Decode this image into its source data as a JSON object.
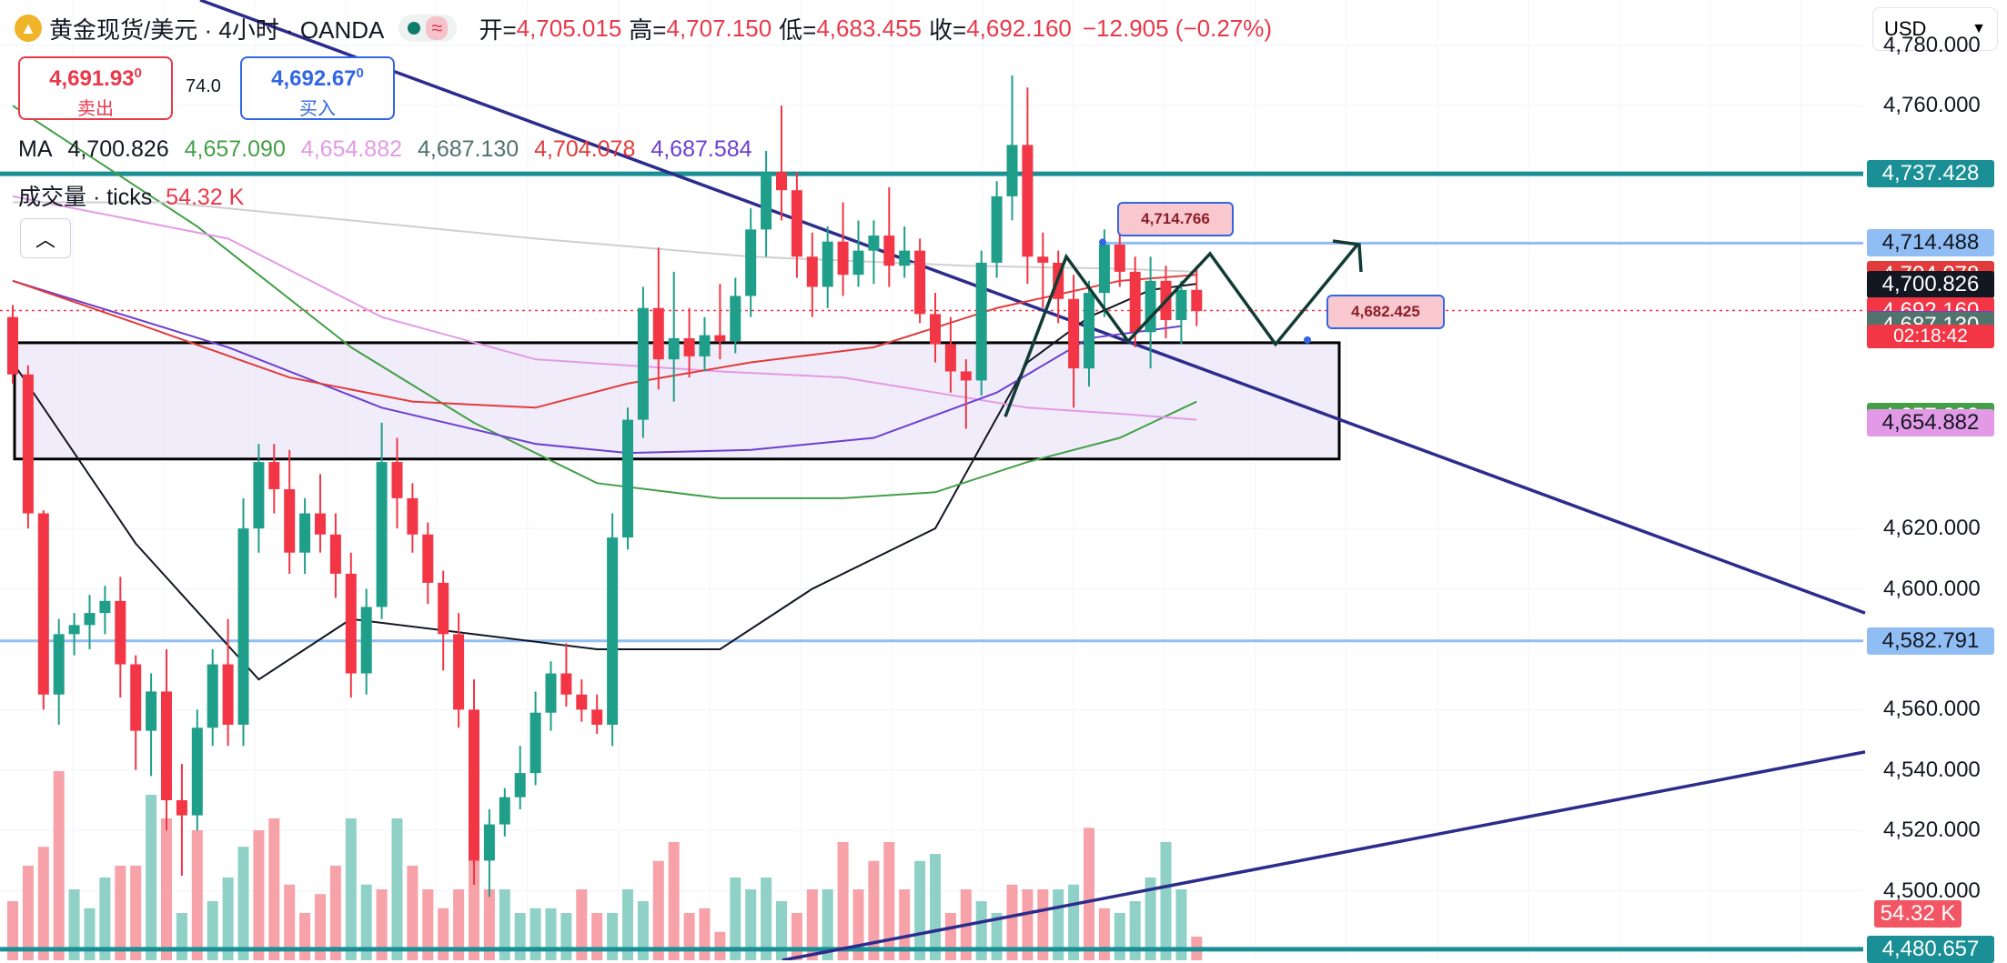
{
  "header": {
    "symbol": "黄金现货/美元 · 4小时 · OANDA",
    "wave_icon": "≈",
    "open_label": "开=",
    "open": "4,705.015",
    "high_label": "高=",
    "high": "4,707.150",
    "low_label": "低=",
    "low": "4,683.455",
    "close_label": "收=",
    "close": "4,692.160",
    "change": "−12.905 (−0.27%)"
  },
  "trade": {
    "sell_price": "4,691.93",
    "sell_sup": "0",
    "sell_label": "卖出",
    "spread": "74.0",
    "buy_price": "4,692.67",
    "buy_sup": "0",
    "buy_label": "买入"
  },
  "ma_legend": {
    "label": "MA",
    "values": [
      "4,700.826",
      "4,657.090",
      "4,654.882",
      "4,687.130",
      "4,704.078",
      "4,687.584"
    ],
    "colors": [
      "#131722",
      "#43a047",
      "#e39ae6",
      "#50736c",
      "#e23b3b",
      "#6c3fd1"
    ]
  },
  "volume_legend": {
    "label": "成交量 · ticks",
    "value": "54.32 K"
  },
  "currency": "USD",
  "axis": {
    "ticks": [
      "4,780.000",
      "4,760.000",
      "4,620.000",
      "4,600.000",
      "4,560.000",
      "4,540.000",
      "4,520.000",
      "4,500.000"
    ],
    "tick_values": [
      4780,
      4760,
      4620,
      4600,
      4560,
      4540,
      4520,
      4500
    ],
    "partial_bottom": "4,480.657",
    "price_min": 4477,
    "price_max": 4795
  },
  "price_tags": [
    {
      "text": "4,737.428",
      "value": 4737.428,
      "color": "#1a8f96"
    },
    {
      "text": "4,714.488",
      "value": 4714.488,
      "color": "#90bdf3"
    },
    {
      "text": "4,704.078",
      "value": 4704.078,
      "color": "#e23b3b"
    },
    {
      "text": "4,700.826",
      "value": 4700.826,
      "color": "#131722"
    },
    {
      "text": "4,692.160",
      "value": 4692.16,
      "color": "#f23645"
    },
    {
      "text": "4,687.584",
      "value": 4687.584,
      "color": "#6c3fd1"
    },
    {
      "text": "4,687.130",
      "value": 4687.13,
      "color": "#50736c"
    },
    {
      "text": "4,657.090",
      "value": 4657.09,
      "color": "#43a047"
    },
    {
      "text": "4,654.882",
      "value": 4654.882,
      "color": "#e39ae6"
    },
    {
      "text": "4,582.791",
      "value": 4582.791,
      "color": "#90bdf3"
    },
    {
      "text": "4,480.657",
      "value": 4480.657,
      "color": "#1a8f96"
    }
  ],
  "countdown": "02:18:42",
  "volume_tag": "54.32 K",
  "callouts": [
    {
      "text": "4,714.766",
      "value": 4714.766
    },
    {
      "text": "4,682.425",
      "value": 4682.425
    }
  ],
  "chart_data": {
    "type": "candlestick",
    "ohlc": [
      [
        4690,
        4694,
        4668,
        4671
      ],
      [
        4671,
        4674,
        4620,
        4625
      ],
      [
        4625,
        4626,
        4560,
        4565
      ],
      [
        4565,
        4590,
        4555,
        4585
      ],
      [
        4585,
        4592,
        4578,
        4588
      ],
      [
        4588,
        4598,
        4580,
        4592
      ],
      [
        4592,
        4601,
        4585,
        4596
      ],
      [
        4596,
        4604,
        4564,
        4575
      ],
      [
        4575,
        4578,
        4540,
        4553
      ],
      [
        4553,
        4572,
        4538,
        4566
      ],
      [
        4566,
        4580,
        4520,
        4530
      ],
      [
        4530,
        4542,
        4505,
        4525
      ],
      [
        4525,
        4560,
        4520,
        4554
      ],
      [
        4554,
        4580,
        4548,
        4575
      ],
      [
        4575,
        4590,
        4548,
        4555
      ],
      [
        4555,
        4630,
        4548,
        4620
      ],
      [
        4620,
        4648,
        4612,
        4642
      ],
      [
        4642,
        4648,
        4625,
        4633
      ],
      [
        4633,
        4646,
        4605,
        4612
      ],
      [
        4612,
        4630,
        4605,
        4625
      ],
      [
        4625,
        4638,
        4612,
        4618
      ],
      [
        4618,
        4625,
        4597,
        4605
      ],
      [
        4605,
        4612,
        4564,
        4572
      ],
      [
        4572,
        4600,
        4565,
        4594
      ],
      [
        4594,
        4655,
        4590,
        4642
      ],
      [
        4642,
        4650,
        4620,
        4630
      ],
      [
        4630,
        4635,
        4612,
        4618
      ],
      [
        4618,
        4622,
        4595,
        4602
      ],
      [
        4602,
        4606,
        4573,
        4585
      ],
      [
        4585,
        4592,
        4554,
        4560
      ],
      [
        4560,
        4570,
        4502,
        4510
      ],
      [
        4510,
        4527,
        4498,
        4522
      ],
      [
        4522,
        4534,
        4518,
        4531
      ],
      [
        4531,
        4548,
        4527,
        4539
      ],
      [
        4539,
        4566,
        4535,
        4559
      ],
      [
        4559,
        4576,
        4553,
        4572
      ],
      [
        4572,
        4582,
        4561,
        4565
      ],
      [
        4565,
        4570,
        4556,
        4560
      ],
      [
        4560,
        4565,
        4552,
        4555
      ],
      [
        4555,
        4625,
        4548,
        4617
      ],
      [
        4617,
        4660,
        4613,
        4656
      ],
      [
        4656,
        4700,
        4650,
        4693
      ],
      [
        4693,
        4713,
        4666,
        4676
      ],
      [
        4676,
        4705,
        4662,
        4683
      ],
      [
        4683,
        4693,
        4670,
        4677
      ],
      [
        4677,
        4690,
        4672,
        4684
      ],
      [
        4684,
        4701,
        4676,
        4682
      ],
      [
        4682,
        4703,
        4678,
        4697
      ],
      [
        4697,
        4726,
        4690,
        4719
      ],
      [
        4719,
        4745,
        4710,
        4738
      ],
      [
        4738,
        4760,
        4722,
        4732
      ],
      [
        4732,
        4738,
        4703,
        4710
      ],
      [
        4710,
        4718,
        4690,
        4700
      ],
      [
        4700,
        4720,
        4693,
        4715
      ],
      [
        4715,
        4728,
        4697,
        4704
      ],
      [
        4704,
        4722,
        4700,
        4712
      ],
      [
        4712,
        4722,
        4701,
        4717
      ],
      [
        4717,
        4733,
        4700,
        4707
      ],
      [
        4707,
        4720,
        4703,
        4712
      ],
      [
        4712,
        4716,
        4688,
        4691
      ],
      [
        4691,
        4698,
        4675,
        4681
      ],
      [
        4681,
        4690,
        4665,
        4672
      ],
      [
        4672,
        4676,
        4653,
        4669
      ],
      [
        4669,
        4712,
        4664,
        4708
      ],
      [
        4708,
        4735,
        4703,
        4730
      ],
      [
        4730,
        4770,
        4722,
        4747
      ],
      [
        4747,
        4766,
        4701,
        4710
      ],
      [
        4710,
        4718,
        4693,
        4708
      ],
      [
        4708,
        4712,
        4688,
        4696
      ],
      [
        4696,
        4704,
        4660,
        4673
      ],
      [
        4673,
        4702,
        4667,
        4698
      ],
      [
        4698,
        4719,
        4690,
        4714
      ],
      [
        4714,
        4722,
        4700,
        4705
      ],
      [
        4705,
        4710,
        4680,
        4685
      ],
      [
        4685,
        4710,
        4673,
        4702
      ],
      [
        4702,
        4707,
        4683,
        4689
      ],
      [
        4689,
        4702,
        4681,
        4699
      ],
      [
        4699,
        4707,
        4687,
        4692
      ]
    ],
    "volume": [
      [
        0.25,
        1
      ],
      [
        0.4,
        1
      ],
      [
        0.48,
        1
      ],
      [
        0.8,
        1
      ],
      [
        0.3,
        0
      ],
      [
        0.22,
        0
      ],
      [
        0.35,
        0
      ],
      [
        0.4,
        1
      ],
      [
        0.4,
        1
      ],
      [
        0.7,
        0
      ],
      [
        0.6,
        1
      ],
      [
        0.2,
        0
      ],
      [
        0.55,
        1
      ],
      [
        0.25,
        0
      ],
      [
        0.35,
        0
      ],
      [
        0.48,
        0
      ],
      [
        0.55,
        1
      ],
      [
        0.6,
        1
      ],
      [
        0.32,
        1
      ],
      [
        0.2,
        1
      ],
      [
        0.28,
        1
      ],
      [
        0.4,
        1
      ],
      [
        0.6,
        0
      ],
      [
        0.32,
        0
      ],
      [
        0.3,
        1
      ],
      [
        0.6,
        0
      ],
      [
        0.4,
        1
      ],
      [
        0.3,
        1
      ],
      [
        0.22,
        1
      ],
      [
        0.3,
        1
      ],
      [
        0.45,
        1
      ],
      [
        0.3,
        1
      ],
      [
        0.3,
        0
      ],
      [
        0.2,
        0
      ],
      [
        0.22,
        0
      ],
      [
        0.22,
        0
      ],
      [
        0.2,
        0
      ],
      [
        0.3,
        1
      ],
      [
        0.2,
        1
      ],
      [
        0.2,
        0
      ],
      [
        0.3,
        0
      ],
      [
        0.25,
        0
      ],
      [
        0.42,
        1
      ],
      [
        0.5,
        1
      ],
      [
        0.2,
        1
      ],
      [
        0.22,
        1
      ],
      [
        0.12,
        1
      ],
      [
        0.35,
        0
      ],
      [
        0.3,
        0
      ],
      [
        0.35,
        0
      ],
      [
        0.25,
        0
      ],
      [
        0.2,
        1
      ],
      [
        0.3,
        1
      ],
      [
        0.3,
        0
      ],
      [
        0.5,
        1
      ],
      [
        0.3,
        1
      ],
      [
        0.42,
        1
      ],
      [
        0.5,
        1
      ],
      [
        0.3,
        1
      ],
      [
        0.42,
        0
      ],
      [
        0.45,
        0
      ],
      [
        0.2,
        1
      ],
      [
        0.3,
        1
      ],
      [
        0.25,
        0
      ],
      [
        0.2,
        0
      ],
      [
        0.32,
        1
      ],
      [
        0.3,
        1
      ],
      [
        0.3,
        1
      ],
      [
        0.3,
        0
      ],
      [
        0.32,
        0
      ],
      [
        0.56,
        1
      ],
      [
        0.22,
        1
      ],
      [
        0.2,
        0
      ],
      [
        0.25,
        0
      ],
      [
        0.35,
        0
      ],
      [
        0.5,
        0
      ],
      [
        0.3,
        0
      ],
      [
        0.1,
        1
      ]
    ],
    "ma_lines": [
      {
        "name": "MA",
        "color": "#131722",
        "points": [
          [
            0,
            4675
          ],
          [
            8,
            4615
          ],
          [
            16,
            4570
          ],
          [
            22,
            4590
          ],
          [
            30,
            4585
          ],
          [
            38,
            4580
          ],
          [
            46,
            4580
          ],
          [
            52,
            4600
          ],
          [
            60,
            4620
          ],
          [
            66,
            4675
          ],
          [
            70,
            4690
          ],
          [
            74,
            4699
          ],
          [
            77,
            4701
          ]
        ]
      },
      {
        "name": "MA",
        "color": "#43a047",
        "points": [
          [
            0,
            4760
          ],
          [
            12,
            4720
          ],
          [
            22,
            4680
          ],
          [
            30,
            4655
          ],
          [
            38,
            4635
          ],
          [
            46,
            4630
          ],
          [
            54,
            4630
          ],
          [
            60,
            4632
          ],
          [
            66,
            4642
          ],
          [
            72,
            4650
          ],
          [
            77,
            4662
          ]
        ]
      },
      {
        "name": "MA",
        "color": "#e39ae6",
        "points": [
          [
            0,
            4730
          ],
          [
            14,
            4716
          ],
          [
            24,
            4690
          ],
          [
            34,
            4676
          ],
          [
            46,
            4672
          ],
          [
            54,
            4670
          ],
          [
            60,
            4665
          ],
          [
            66,
            4660
          ],
          [
            72,
            4658
          ],
          [
            77,
            4656
          ]
        ]
      },
      {
        "name": "MA",
        "color": "#6c3fd1",
        "points": [
          [
            0,
            4702
          ],
          [
            14,
            4680
          ],
          [
            24,
            4660
          ],
          [
            34,
            4648
          ],
          [
            40,
            4645
          ],
          [
            48,
            4646
          ],
          [
            56,
            4650
          ],
          [
            64,
            4665
          ],
          [
            70,
            4683
          ],
          [
            76,
            4687
          ]
        ]
      },
      {
        "name": "MA",
        "color": "#e23b3b",
        "points": [
          [
            0,
            4702
          ],
          [
            8,
            4688
          ],
          [
            18,
            4670
          ],
          [
            26,
            4662
          ],
          [
            34,
            4660
          ],
          [
            40,
            4668
          ],
          [
            48,
            4675
          ],
          [
            56,
            4680
          ],
          [
            64,
            4693
          ],
          [
            72,
            4702
          ],
          [
            77,
            4704
          ]
        ]
      },
      {
        "name": "MA",
        "color": "#cfcfcf",
        "points": [
          [
            0,
            4728
          ],
          [
            10,
            4728
          ],
          [
            22,
            4722
          ],
          [
            34,
            4716
          ],
          [
            48,
            4710
          ],
          [
            62,
            4707
          ],
          [
            72,
            4706
          ],
          [
            77,
            4705
          ]
        ]
      }
    ]
  }
}
